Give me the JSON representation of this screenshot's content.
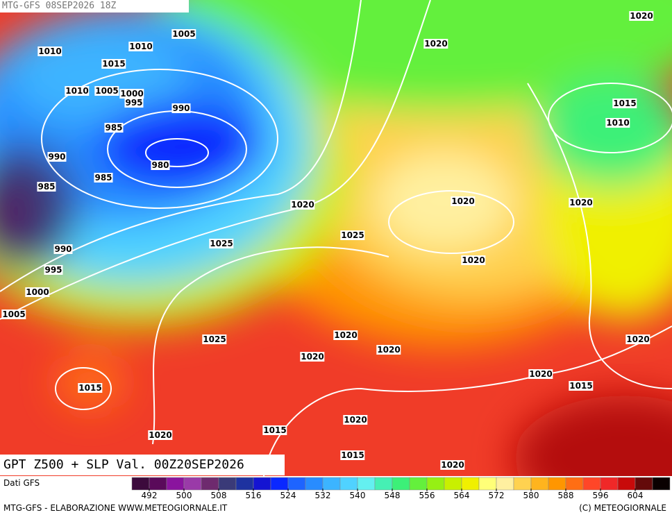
{
  "header": {
    "title": "MTG-GFS 08SEP2026 18Z"
  },
  "caption": "GPT Z500 + SLP Val. 00Z20SEP2026",
  "source": "Dati GFS",
  "footer": {
    "left": "MTG-GFS - ELABORAZIONE WWW.METEOGIORNALE.IT",
    "right": "(C) METEOGIORNALE"
  },
  "colorbar": {
    "lim": [
      488,
      612
    ],
    "ticks": [
      492,
      500,
      508,
      516,
      524,
      532,
      540,
      548,
      556,
      564,
      572,
      580,
      588,
      596,
      604
    ],
    "colors": [
      "#3c0a3c",
      "#5a0a5a",
      "#8a149e",
      "#9a3aa8",
      "#6e2a6e",
      "#3a3a78",
      "#1e32a0",
      "#1414d2",
      "#0a28ff",
      "#1e64ff",
      "#288cff",
      "#3cb4ff",
      "#50d2ff",
      "#64f0f0",
      "#46f0b4",
      "#3cf078",
      "#64f03c",
      "#96f014",
      "#c8f000",
      "#f0f000",
      "#ffff78",
      "#fff0a0",
      "#ffd250",
      "#ffb41e",
      "#ff9600",
      "#ff6e14",
      "#ff4628",
      "#f02828",
      "#c80a0a",
      "#640a0a",
      "#0a0000"
    ]
  },
  "isobar_labels": [
    1005,
    1010,
    1010,
    1015,
    1010,
    1005,
    1000,
    995,
    990,
    985,
    980,
    990,
    985,
    985,
    990,
    995,
    1000,
    1005,
    1025,
    1020,
    1025,
    1020,
    1020,
    1020,
    1015,
    1010,
    1020,
    1020,
    1025,
    1020,
    1020,
    1020,
    1015,
    1020,
    1020,
    1015,
    1020,
    1015,
    1020,
    1015,
    1020
  ]
}
